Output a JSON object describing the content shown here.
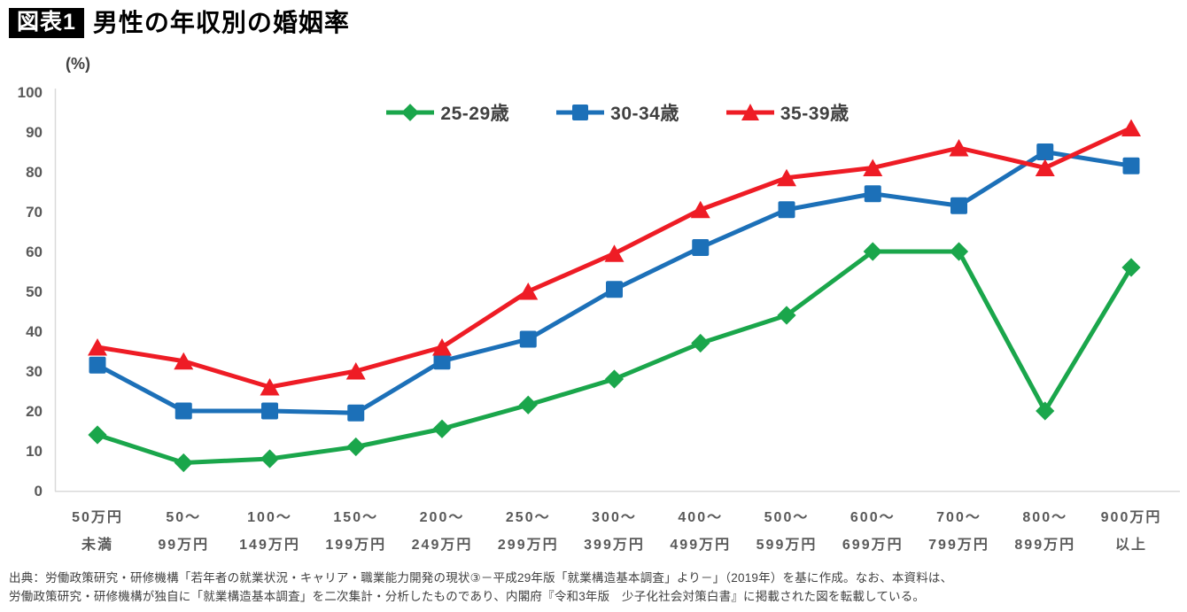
{
  "header": {
    "badge": "図表1",
    "title": "男性の年収別の婚姻率"
  },
  "chart_data": {
    "type": "line",
    "title": "男性の年収別の婚姻率",
    "unit_label": "(%)",
    "ylabel": "%",
    "ylim": [
      0,
      100
    ],
    "ytick_step": 10,
    "grid": false,
    "legend_position": "top-center",
    "categories": [
      "50万円未満",
      "50〜99万円",
      "100〜149万円",
      "150〜199万円",
      "200〜249万円",
      "250〜299万円",
      "300〜399万円",
      "400〜499万円",
      "500〜599万円",
      "600〜699万円",
      "700〜799万円",
      "800〜899万円",
      "900万円以上"
    ],
    "category_labels_line1": [
      "50万円",
      "50〜",
      "100〜",
      "150〜",
      "200〜",
      "250〜",
      "300〜",
      "400〜",
      "500〜",
      "600〜",
      "700〜",
      "800〜",
      "900万円"
    ],
    "category_labels_line2": [
      "未満",
      "99万円",
      "149万円",
      "199万円",
      "249万円",
      "299万円",
      "399万円",
      "499万円",
      "599万円",
      "699万円",
      "799万円",
      "899万円",
      "以上"
    ],
    "series": [
      {
        "name": "25-29歳",
        "marker": "diamond",
        "color": "#1aa64b",
        "values": [
          14,
          7,
          8,
          11,
          15.5,
          21.5,
          28,
          37,
          44,
          60,
          60,
          20,
          56
        ]
      },
      {
        "name": "30-34歳",
        "marker": "square",
        "color": "#1c70b8",
        "values": [
          31.5,
          20,
          20,
          19.5,
          32.5,
          38,
          50.5,
          61,
          70.5,
          74.5,
          71.5,
          85,
          81.5
        ]
      },
      {
        "name": "35-39歳",
        "marker": "triangle",
        "color": "#ee1c25",
        "values": [
          36,
          32.5,
          26,
          30,
          36,
          50,
          59.5,
          70.5,
          78.5,
          81,
          86,
          81,
          91
        ]
      }
    ]
  },
  "footer": {
    "line1": "出典：労働政策研究・研修機構「若年者の就業状況・キャリア・職業能力開発の現状③－平成29年版「就業構造基本調査」より－」（2019年）を基に作成。なお、本資料は、",
    "line2": "労働政策研究・研修機構が独自に「就業構造基本調査」を二次集計・分析したものであり、内閣府『令和3年版　少子化社会対策白書』に掲載された図を転載している。"
  },
  "colors": {
    "axis_line": "#d9d9d9",
    "tick_text": "#595959",
    "title_text": "#000000",
    "badge_bg": "#000000",
    "badge_text": "#ffffff",
    "footer_text": "#404040",
    "legend_text": "#404040"
  }
}
